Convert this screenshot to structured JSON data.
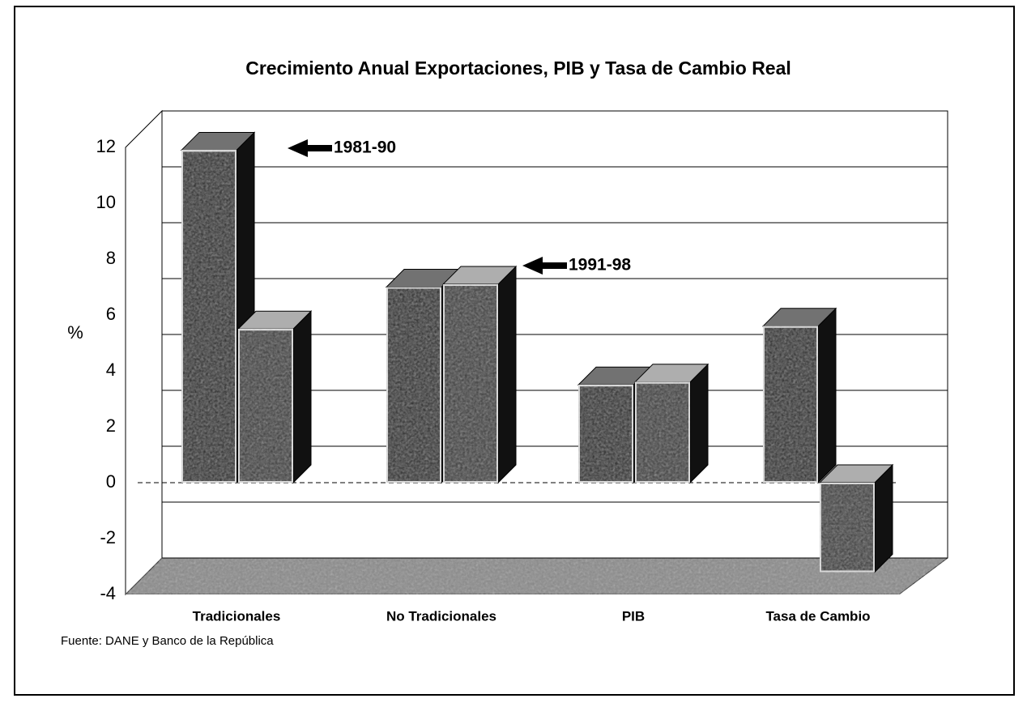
{
  "chart_data": {
    "type": "bar3d",
    "title": "Crecimiento Anual Exportaciones, PIB y Tasa de Cambio Real",
    "y_label": "%",
    "source": "Fuente: DANE y Banco de la República",
    "categories": [
      "Tradicionales",
      "No Tradicionales",
      "PIB",
      "Tasa de Cambio"
    ],
    "series": [
      {
        "name": "1981-90",
        "color": "#262626",
        "values": [
          11.9,
          7.0,
          3.5,
          5.6
        ]
      },
      {
        "name": "1991-98",
        "color": "#3a3a3a",
        "values": [
          5.5,
          7.1,
          3.6,
          -3.2
        ]
      }
    ],
    "ylim": [
      -4,
      12
    ],
    "yticks": [
      -4,
      -2,
      0,
      2,
      4,
      6,
      8,
      10,
      12
    ],
    "grid": true
  }
}
